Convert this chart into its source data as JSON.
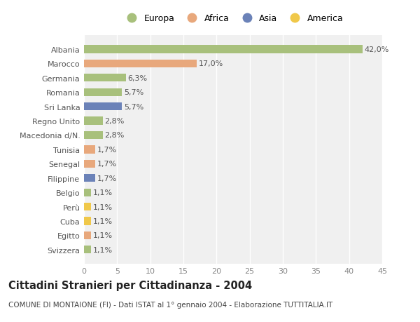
{
  "categories": [
    "Albania",
    "Marocco",
    "Germania",
    "Romania",
    "Sri Lanka",
    "Regno Unito",
    "Macedonia d/N.",
    "Tunisia",
    "Senegal",
    "Filippine",
    "Belgio",
    "Perù",
    "Cuba",
    "Egitto",
    "Svizzera"
  ],
  "values": [
    42.0,
    17.0,
    6.3,
    5.7,
    5.7,
    2.8,
    2.8,
    1.7,
    1.7,
    1.7,
    1.1,
    1.1,
    1.1,
    1.1,
    1.1
  ],
  "labels": [
    "42,0%",
    "17,0%",
    "6,3%",
    "5,7%",
    "5,7%",
    "2,8%",
    "2,8%",
    "1,7%",
    "1,7%",
    "1,7%",
    "1,1%",
    "1,1%",
    "1,1%",
    "1,1%",
    "1,1%"
  ],
  "continents": [
    "Europa",
    "Africa",
    "Europa",
    "Europa",
    "Asia",
    "Europa",
    "Europa",
    "Africa",
    "Africa",
    "Asia",
    "Europa",
    "America",
    "America",
    "Africa",
    "Europa"
  ],
  "continent_colors": {
    "Europa": "#a8c07c",
    "Africa": "#e8a87c",
    "Asia": "#6b82b8",
    "America": "#f0c84a"
  },
  "legend_order": [
    "Europa",
    "Africa",
    "Asia",
    "America"
  ],
  "title": "Cittadini Stranieri per Cittadinanza - 2004",
  "subtitle": "COMUNE DI MONTAIONE (FI) - Dati ISTAT al 1° gennaio 2004 - Elaborazione TUTTITALIA.IT",
  "xlim": [
    0,
    45
  ],
  "xticks": [
    0,
    5,
    10,
    15,
    20,
    25,
    30,
    35,
    40,
    45
  ],
  "bg_color": "#ffffff",
  "plot_bg_color": "#f0f0f0",
  "grid_color": "#ffffff",
  "bar_height": 0.55,
  "label_fontsize": 8,
  "tick_fontsize": 8,
  "ytick_fontsize": 8,
  "title_fontsize": 10.5,
  "subtitle_fontsize": 7.5
}
